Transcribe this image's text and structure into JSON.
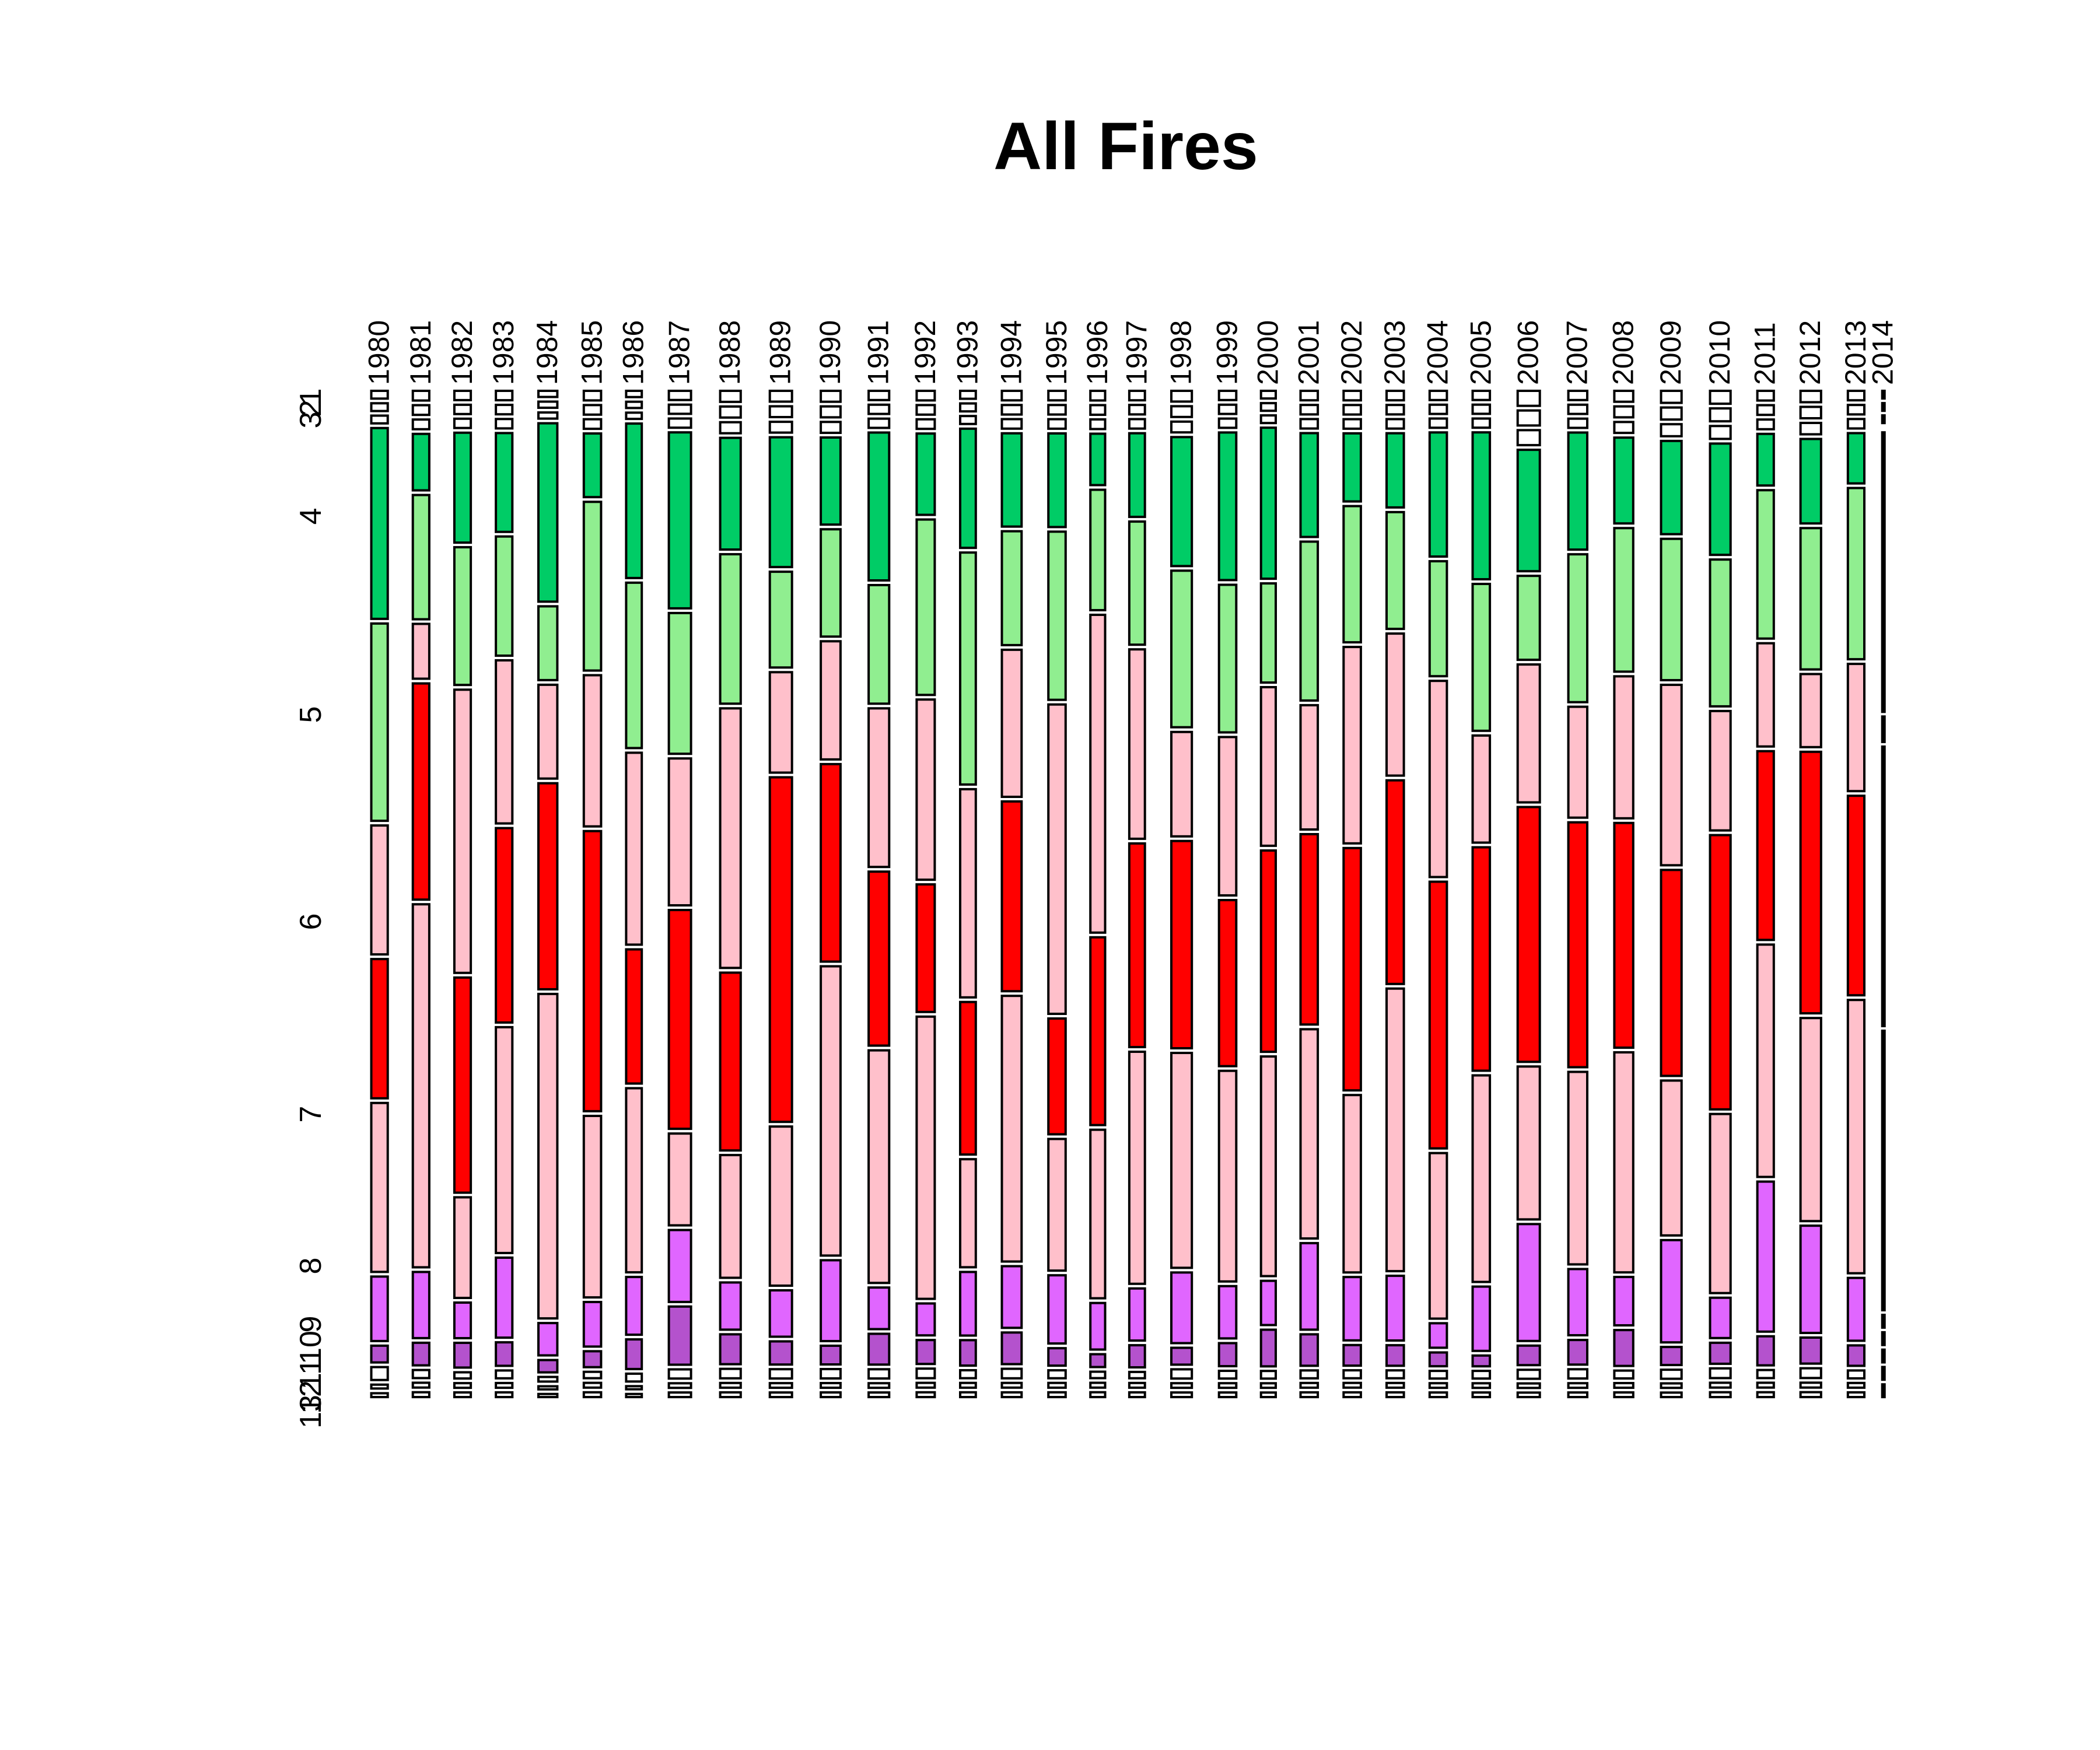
{
  "chart_data": {
    "type": "mosaic",
    "title": "All Fires",
    "xlabel": "",
    "ylabel": "",
    "categories": [
      "1980",
      "1981",
      "1982",
      "1983",
      "1984",
      "1985",
      "1986",
      "1987",
      "1988",
      "1989",
      "1990",
      "1991",
      "1992",
      "1993",
      "1994",
      "1995",
      "1996",
      "1997",
      "1998",
      "1999",
      "2000",
      "2001",
      "2002",
      "2003",
      "2004",
      "2005",
      "2006",
      "2007",
      "2008",
      "2009",
      "2010",
      "2011",
      "2012",
      "2013",
      "2014"
    ],
    "col_weights": [
      1.0,
      1.0,
      1.0,
      1.0,
      1.15,
      1.05,
      0.95,
      1.35,
      1.25,
      1.35,
      1.2,
      1.25,
      1.1,
      0.95,
      1.2,
      1.05,
      0.9,
      0.95,
      1.25,
      1.05,
      0.9,
      1.05,
      1.05,
      1.05,
      1.05,
      1.05,
      1.35,
      1.15,
      1.15,
      1.25,
      1.25,
      1.0,
      1.25,
      1.0,
      0.05
    ],
    "row_levels": [
      "3",
      "2",
      "1",
      "4",
      "",
      "5",
      "",
      "6",
      "",
      "7",
      "",
      "8",
      "9",
      "10",
      "11",
      "12",
      "13"
    ],
    "row_axis_labels": [
      "3",
      "2",
      "1",
      "4",
      "5",
      "6",
      "7",
      "8",
      "9",
      "10",
      "11",
      "12",
      "13"
    ],
    "series_colors": {
      "1": "#ffffff",
      "2": "#ffffff",
      "3": "#ffffff",
      "4": "#00cc66",
      "4b": "#90ee90",
      "5": "#ffc0cb",
      "5b": "#ff0000",
      "6": "#ffc0cb",
      "6b": "#ff0000",
      "7": "#ffc0cb",
      "7b": "#ff0000",
      "8": "#e066ff",
      "9": "#e066ff",
      "10": "#b452cd",
      "11": "#b452cd",
      "12": "#ffffff",
      "13": "#ffffff"
    },
    "columns": [
      {
        "year": "1980",
        "shares": [
          0.6,
          0.6,
          0.6,
          14.8,
          15.3,
          10.0,
          10.8,
          13.1,
          5.0,
          1.3,
          1.0,
          0.3,
          0.3
        ]
      },
      {
        "year": "1981",
        "shares": [
          0.6,
          0.6,
          0.6,
          3.5,
          7.7,
          3.4,
          13.4,
          22.5,
          4.1,
          1.4,
          0.5,
          0.3,
          0.3
        ]
      },
      {
        "year": "1982",
        "shares": [
          0.6,
          0.6,
          0.6,
          7.1,
          8.9,
          18.3,
          13.9,
          6.5,
          2.3,
          1.6,
          0.4,
          0.3,
          0.3
        ]
      },
      {
        "year": "1983",
        "shares": [
          0.6,
          0.6,
          0.6,
          6.3,
          7.6,
          10.4,
          12.4,
          14.4,
          5.1,
          1.5,
          0.5,
          0.3,
          0.3
        ]
      },
      {
        "year": "1984",
        "shares": [
          0.4,
          0.4,
          0.4,
          11.6,
          4.8,
          6.1,
          13.4,
          21.1,
          2.1,
          0.8,
          0.3,
          0.2,
          0.2
        ]
      },
      {
        "year": "1985",
        "shares": [
          0.6,
          0.6,
          0.6,
          4.0,
          10.6,
          9.5,
          17.6,
          11.4,
          2.8,
          1.0,
          0.4,
          0.3,
          0.3
        ]
      },
      {
        "year": "1986",
        "shares": [
          0.4,
          0.4,
          0.4,
          9.9,
          10.6,
          12.3,
          8.6,
          11.8,
          3.7,
          1.9,
          0.5,
          0.2,
          0.2
        ]
      },
      {
        "year": "1987",
        "shares": [
          0.6,
          0.6,
          0.6,
          11.5,
          9.2,
          9.6,
          14.3,
          6.0,
          4.7,
          3.8,
          0.6,
          0.3,
          0.3
        ]
      },
      {
        "year": "1988",
        "shares": [
          0.7,
          0.7,
          0.7,
          7.1,
          9.5,
          16.5,
          11.3,
          7.8,
          3.0,
          1.9,
          0.6,
          0.3,
          0.3
        ]
      },
      {
        "year": "1989",
        "shares": [
          0.7,
          0.7,
          0.7,
          8.4,
          6.2,
          6.5,
          22.3,
          10.3,
          3.0,
          1.5,
          0.6,
          0.3,
          0.3
        ]
      },
      {
        "year": "1990",
        "shares": [
          0.7,
          0.7,
          0.7,
          5.6,
          6.9,
          7.6,
          12.7,
          18.6,
          5.2,
          1.2,
          0.6,
          0.3,
          0.3
        ]
      },
      {
        "year": "1991",
        "shares": [
          0.6,
          0.6,
          0.6,
          9.6,
          7.7,
          10.3,
          11.3,
          15.1,
          2.7,
          2.0,
          0.6,
          0.3,
          0.3
        ]
      },
      {
        "year": "1992",
        "shares": [
          0.6,
          0.6,
          0.6,
          5.1,
          11.0,
          11.3,
          8.0,
          17.7,
          2.0,
          1.5,
          0.6,
          0.3,
          0.3
        ]
      },
      {
        "year": "1993",
        "shares": [
          0.5,
          0.5,
          0.5,
          7.5,
          14.6,
          13.1,
          9.6,
          6.8,
          4.0,
          1.6,
          0.5,
          0.3,
          0.3
        ]
      },
      {
        "year": "1994",
        "shares": [
          0.6,
          0.6,
          0.6,
          5.9,
          7.2,
          9.3,
          12.0,
          16.8,
          3.9,
          2.0,
          0.6,
          0.3,
          0.3
        ]
      },
      {
        "year": "1995",
        "shares": [
          0.6,
          0.6,
          0.6,
          5.9,
          10.6,
          19.5,
          7.3,
          8.3,
          4.3,
          1.1,
          0.5,
          0.3,
          0.3
        ]
      },
      {
        "year": "1996",
        "shares": [
          0.6,
          0.6,
          0.6,
          3.2,
          7.5,
          19.8,
          11.7,
          10.5,
          2.9,
          0.8,
          0.4,
          0.3,
          0.3
        ]
      },
      {
        "year": "1997",
        "shares": [
          0.6,
          0.6,
          0.6,
          5.3,
          7.8,
          12.0,
          12.9,
          14.7,
          3.3,
          1.4,
          0.4,
          0.3,
          0.3
        ]
      },
      {
        "year": "1998",
        "shares": [
          0.7,
          0.7,
          0.7,
          8.4,
          10.2,
          6.8,
          13.5,
          14.0,
          4.6,
          1.1,
          0.6,
          0.3,
          0.3
        ]
      },
      {
        "year": "1999",
        "shares": [
          0.6,
          0.6,
          0.6,
          9.6,
          9.6,
          10.3,
          10.8,
          13.7,
          3.4,
          1.5,
          0.5,
          0.3,
          0.3
        ]
      },
      {
        "year": "2000",
        "shares": [
          0.5,
          0.5,
          0.5,
          9.9,
          6.5,
          10.4,
          13.2,
          14.4,
          2.9,
          2.4,
          0.5,
          0.3,
          0.3
        ]
      },
      {
        "year": "2001",
        "shares": [
          0.6,
          0.6,
          0.6,
          6.6,
          10.1,
          7.9,
          12.1,
          13.3,
          5.5,
          2.0,
          0.5,
          0.3,
          0.3
        ]
      },
      {
        "year": "2002",
        "shares": [
          0.6,
          0.6,
          0.6,
          4.3,
          8.6,
          12.4,
          15.3,
          11.2,
          4.0,
          1.3,
          0.5,
          0.3,
          0.3
        ]
      },
      {
        "year": "2003",
        "shares": [
          0.6,
          0.6,
          0.6,
          4.7,
          7.4,
          9.0,
          12.9,
          17.9,
          4.1,
          1.3,
          0.5,
          0.3,
          0.3
        ]
      },
      {
        "year": "2004",
        "shares": [
          0.6,
          0.6,
          0.6,
          8.1,
          7.5,
          12.8,
          17.4,
          10.8,
          1.6,
          0.9,
          0.5,
          0.3,
          0.3
        ]
      },
      {
        "year": "2005",
        "shares": [
          0.6,
          0.6,
          0.6,
          9.6,
          9.6,
          7.0,
          14.6,
          13.5,
          4.2,
          0.7,
          0.5,
          0.3,
          0.3
        ]
      },
      {
        "year": "2006",
        "shares": [
          1.0,
          1.0,
          1.0,
          8.1,
          5.6,
          9.2,
          17.0,
          10.2,
          7.8,
          1.3,
          0.6,
          0.3,
          0.3
        ]
      },
      {
        "year": "2007",
        "shares": [
          0.6,
          0.6,
          0.6,
          7.6,
          9.6,
          7.2,
          15.9,
          12.5,
          4.3,
          1.6,
          0.6,
          0.3,
          0.3
        ]
      },
      {
        "year": "2008",
        "shares": [
          0.7,
          0.7,
          0.7,
          5.5,
          9.2,
          9.1,
          14.4,
          14.1,
          3.1,
          2.3,
          0.5,
          0.3,
          0.3
        ]
      },
      {
        "year": "2009",
        "shares": [
          0.8,
          0.8,
          0.8,
          6.2,
          9.4,
          12.0,
          13.7,
          10.3,
          6.8,
          1.2,
          0.6,
          0.3,
          0.3
        ]
      },
      {
        "year": "2010",
        "shares": [
          0.8,
          0.8,
          0.8,
          6.9,
          9.1,
          7.4,
          17.0,
          11.1,
          2.5,
          1.3,
          0.6,
          0.3,
          0.3
        ]
      },
      {
        "year": "2011",
        "shares": [
          0.6,
          0.6,
          0.6,
          3.2,
          9.2,
          6.4,
          11.7,
          14.4,
          9.3,
          1.8,
          0.5,
          0.3,
          0.3
        ]
      },
      {
        "year": "2012",
        "shares": [
          0.7,
          0.7,
          0.7,
          5.2,
          8.7,
          4.5,
          16.1,
          12.5,
          6.6,
          1.6,
          0.6,
          0.3,
          0.3
        ]
      },
      {
        "year": "2013",
        "shares": [
          0.6,
          0.6,
          0.6,
          3.2,
          10.9,
          8.1,
          12.7,
          17.4,
          4.0,
          1.3,
          0.5,
          0.3,
          0.3
        ]
      },
      {
        "year": "2014",
        "shares": [
          0.6,
          0.6,
          0.6,
          0.0,
          22.0,
          2.0,
          22.0,
          22.0,
          1.0,
          1.0,
          1.0,
          1.0,
          1.0
        ]
      }
    ]
  }
}
